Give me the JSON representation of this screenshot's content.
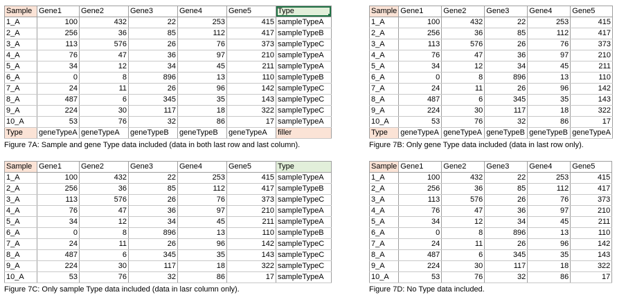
{
  "panels": [
    {
      "id": "a",
      "headers": [
        "Sample",
        "Gene1",
        "Gene2",
        "Gene3",
        "Gene4",
        "Gene5",
        "Type"
      ],
      "rows": [
        [
          "1_A",
          "100",
          "432",
          "22",
          "253",
          "415",
          "sampleTypeA"
        ],
        [
          "2_A",
          "256",
          "36",
          "85",
          "112",
          "417",
          "sampleTypeB"
        ],
        [
          "3_A",
          "113",
          "576",
          "26",
          "76",
          "373",
          "sampleTypeC"
        ],
        [
          "4_A",
          "76",
          "47",
          "36",
          "97",
          "210",
          "sampleTypeA"
        ],
        [
          "5_A",
          "34",
          "12",
          "34",
          "45",
          "211",
          "sampleTypeA"
        ],
        [
          "6_A",
          "0",
          "8",
          "896",
          "13",
          "110",
          "sampleTypeB"
        ],
        [
          "7_A",
          "24",
          "11",
          "26",
          "96",
          "142",
          "sampleTypeC"
        ],
        [
          "8_A",
          "487",
          "6",
          "345",
          "35",
          "143",
          "sampleTypeC"
        ],
        [
          "9_A",
          "224",
          "30",
          "117",
          "18",
          "322",
          "sampleTypeC"
        ],
        [
          "10_A",
          "53",
          "76",
          "32",
          "86",
          "17",
          "sampleTypeA"
        ]
      ],
      "footer": [
        "Type",
        "geneTypeA",
        "geneTypeA",
        "geneTypeB",
        "geneTypeB",
        "geneTypeA",
        "filler"
      ],
      "caption": "Figure 7A: Sample and gene Type data included (data in both last row and last column)."
    },
    {
      "id": "b",
      "headers": [
        "Sample",
        "Gene1",
        "Gene2",
        "Gene3",
        "Gene4",
        "Gene5"
      ],
      "rows": [
        [
          "1_A",
          "100",
          "432",
          "22",
          "253",
          "415"
        ],
        [
          "2_A",
          "256",
          "36",
          "85",
          "112",
          "417"
        ],
        [
          "3_A",
          "113",
          "576",
          "26",
          "76",
          "373"
        ],
        [
          "4_A",
          "76",
          "47",
          "36",
          "97",
          "210"
        ],
        [
          "5_A",
          "34",
          "12",
          "34",
          "45",
          "211"
        ],
        [
          "6_A",
          "0",
          "8",
          "896",
          "13",
          "110"
        ],
        [
          "7_A",
          "24",
          "11",
          "26",
          "96",
          "142"
        ],
        [
          "8_A",
          "487",
          "6",
          "345",
          "35",
          "143"
        ],
        [
          "9_A",
          "224",
          "30",
          "117",
          "18",
          "322"
        ],
        [
          "10_A",
          "53",
          "76",
          "32",
          "86",
          "17"
        ]
      ],
      "footer": [
        "Type",
        "geneTypeA",
        "geneTypeA",
        "geneTypeB",
        "geneTypeB",
        "geneTypeA"
      ],
      "caption": "Figure 7B: Only gene Type data included (data in last row only)."
    },
    {
      "id": "c",
      "headers": [
        "Sample",
        "Gene1",
        "Gene2",
        "Gene3",
        "Gene4",
        "Gene5",
        "Type"
      ],
      "rows": [
        [
          "1_A",
          "100",
          "432",
          "22",
          "253",
          "415",
          "sampleTypeA"
        ],
        [
          "2_A",
          "256",
          "36",
          "85",
          "112",
          "417",
          "sampleTypeB"
        ],
        [
          "3_A",
          "113",
          "576",
          "26",
          "76",
          "373",
          "sampleTypeC"
        ],
        [
          "4_A",
          "76",
          "47",
          "36",
          "97",
          "210",
          "sampleTypeA"
        ],
        [
          "5_A",
          "34",
          "12",
          "34",
          "45",
          "211",
          "sampleTypeA"
        ],
        [
          "6_A",
          "0",
          "8",
          "896",
          "13",
          "110",
          "sampleTypeB"
        ],
        [
          "7_A",
          "24",
          "11",
          "26",
          "96",
          "142",
          "sampleTypeC"
        ],
        [
          "8_A",
          "487",
          "6",
          "345",
          "35",
          "143",
          "sampleTypeC"
        ],
        [
          "9_A",
          "224",
          "30",
          "117",
          "18",
          "322",
          "sampleTypeC"
        ],
        [
          "10_A",
          "53",
          "76",
          "32",
          "86",
          "17",
          "sampleTypeA"
        ]
      ],
      "footer": [],
      "caption": "Figure 7C: Only sample Type data included (data in lasr column only)."
    },
    {
      "id": "d",
      "headers": [
        "Sample",
        "Gene1",
        "Gene2",
        "Gene3",
        "Gene4",
        "Gene5"
      ],
      "rows": [
        [
          "1_A",
          "100",
          "432",
          "22",
          "253",
          "415"
        ],
        [
          "2_A",
          "256",
          "36",
          "85",
          "112",
          "417"
        ],
        [
          "3_A",
          "113",
          "576",
          "26",
          "76",
          "373"
        ],
        [
          "4_A",
          "76",
          "47",
          "36",
          "97",
          "210"
        ],
        [
          "5_A",
          "34",
          "12",
          "34",
          "45",
          "211"
        ],
        [
          "6_A",
          "0",
          "8",
          "896",
          "13",
          "110"
        ],
        [
          "7_A",
          "24",
          "11",
          "26",
          "96",
          "142"
        ],
        [
          "8_A",
          "487",
          "6",
          "345",
          "35",
          "143"
        ],
        [
          "9_A",
          "224",
          "30",
          "117",
          "18",
          "322"
        ],
        [
          "10_A",
          "53",
          "76",
          "32",
          "86",
          "17"
        ]
      ],
      "footer": [],
      "caption": "Figure 7D: No Type data included."
    }
  ],
  "colors": {
    "sample_header_fill": "#fbe3d6",
    "type_header_fill": "#e2efda",
    "selection_border": "#217346",
    "grid_line": "#9e9e9e"
  }
}
